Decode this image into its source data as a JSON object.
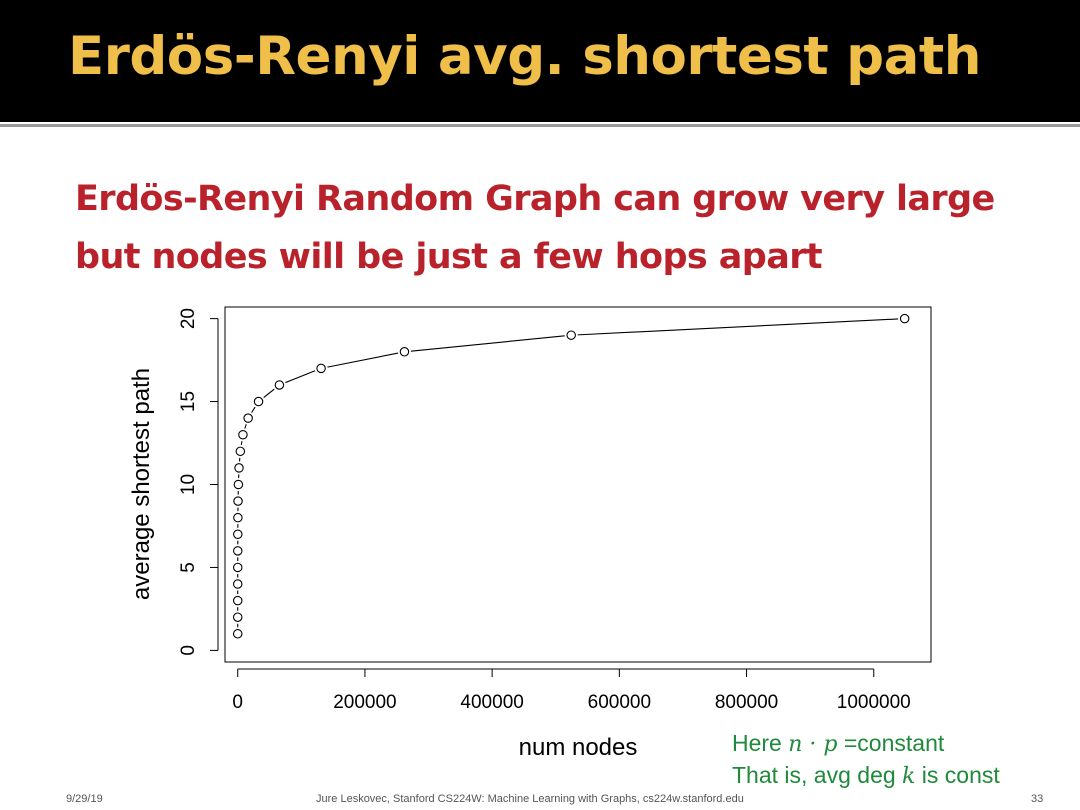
{
  "slide": {
    "title": "Erdös-Renyi avg. shortest path",
    "subtitle": "Erdös-Renyi Random Graph can grow very large but nodes will be just a few hops apart"
  },
  "note": {
    "line1_prefix": "Here ",
    "line1_math": "n · p",
    "line1_suffix": " =constant",
    "line2_prefix": "That is, avg deg ",
    "line2_math": "k",
    "line2_suffix": " is const"
  },
  "footer": {
    "date": "9/29/19",
    "credit": "Jure Leskovec, Stanford CS224W: Machine Learning with Graphs, cs224w.stanford.edu",
    "page": "33"
  },
  "chart_data": {
    "type": "line",
    "xlabel": "num nodes",
    "ylabel": "average shortest path",
    "xlim": [
      -20000,
      1090000
    ],
    "ylim": [
      -0.7,
      20.7
    ],
    "xticks": [
      0,
      200000,
      400000,
      600000,
      800000,
      1000000
    ],
    "xtick_labels": [
      "0",
      "200000",
      "400000",
      "600000",
      "800000",
      "1000000"
    ],
    "yticks": [
      0,
      5,
      10,
      15,
      20
    ],
    "ytick_labels": [
      "0",
      "5",
      "10",
      "15",
      "20"
    ],
    "grid": false,
    "colors": {
      "line": "#000000",
      "marker": "#000000",
      "axes": "#000000"
    },
    "series": [
      {
        "marker": "open-circle",
        "x": [
          2,
          4,
          8,
          16,
          32,
          64,
          128,
          256,
          512,
          1024,
          2048,
          4096,
          8192,
          16384,
          32768,
          65536,
          131072,
          262144,
          524288,
          1048576
        ],
        "y": [
          1,
          2,
          3,
          4,
          5,
          6,
          7,
          8,
          9,
          10,
          11,
          12,
          13,
          14,
          15,
          16,
          17,
          18,
          19,
          20
        ]
      }
    ]
  }
}
